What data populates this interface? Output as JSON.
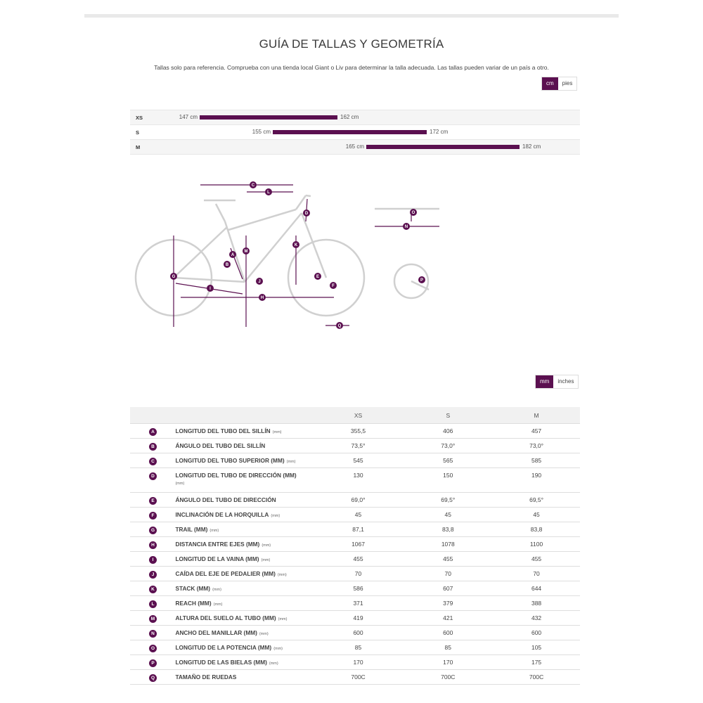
{
  "header": {
    "title": "GUÍA DE TALLAS Y GEOMETRÍA",
    "subtitle": "Tallas solo para referencia. Comprueba con una tienda local Giant o Liv para determinar la talla adecuada. Las tallas pueden variar de un país a otro."
  },
  "size_units": {
    "option_1": "cm",
    "option_2": "pies",
    "selected": "cm"
  },
  "rider_sizes": [
    {
      "size": "XS",
      "min": "147 cm",
      "max": "162 cm",
      "min_value": 147,
      "max_value": 162
    },
    {
      "size": "S",
      "min": "155 cm",
      "max": "172 cm",
      "min_value": 155,
      "max_value": 172
    },
    {
      "size": "M",
      "min": "165 cm",
      "max": "182 cm",
      "min_value": 165,
      "max_value": 182
    }
  ],
  "diagram_labels": {
    "A": "A",
    "B": "B",
    "C": "C",
    "D": "D",
    "E": "E",
    "F": "F",
    "G": "G",
    "H": "H",
    "I": "I",
    "J": "J",
    "K": "K",
    "L": "L",
    "M": "M",
    "N": "N",
    "O": "O",
    "P": "P",
    "Q": "Q"
  },
  "geo_units": {
    "option_1": "mm",
    "option_2": "inches",
    "selected": "mm"
  },
  "geometry": {
    "columns": [
      "XS",
      "S",
      "M"
    ],
    "rows": [
      {
        "letter": "A",
        "name": "LONGITUD DEL TUBO DEL SILLÍN",
        "unit": "(mm)",
        "values": [
          "355,5",
          "406",
          "457"
        ]
      },
      {
        "letter": "B",
        "name": "ÁNGULO DEL TUBO DEL SILLÍN",
        "unit": "",
        "values": [
          "73,5°",
          "73,0°",
          "73,0°"
        ]
      },
      {
        "letter": "C",
        "name": "LONGITUD DEL TUBO SUPERIOR (MM)",
        "unit": "(mm)",
        "values": [
          "545",
          "565",
          "585"
        ]
      },
      {
        "letter": "D",
        "name": "LONGITUD DEL TUBO DE DIRECCIÓN (MM)",
        "unit_below": "(mm)",
        "values": [
          "130",
          "150",
          "190"
        ]
      },
      {
        "letter": "E",
        "name": "ÁNGULO DEL TUBO DE DIRECCIÓN",
        "unit": "",
        "values": [
          "69,0°",
          "69,5°",
          "69,5°"
        ]
      },
      {
        "letter": "F",
        "name": "INCLINACIÓN DE LA HORQUILLA",
        "unit": "(mm)",
        "values": [
          "45",
          "45",
          "45"
        ]
      },
      {
        "letter": "G",
        "name": "TRAIL (MM)",
        "unit": "(mm)",
        "values": [
          "87,1",
          "83,8",
          "83,8"
        ]
      },
      {
        "letter": "H",
        "name": "DISTANCIA ENTRE EJES (MM)",
        "unit": "(mm)",
        "values": [
          "1067",
          "1078",
          "1100"
        ]
      },
      {
        "letter": "I",
        "name": "LONGITUD DE LA VAINA (MM)",
        "unit": "(mm)",
        "values": [
          "455",
          "455",
          "455"
        ]
      },
      {
        "letter": "J",
        "name": "CAÍDA DEL EJE DE PEDALIER (MM)",
        "unit": "(mm)",
        "values": [
          "70",
          "70",
          "70"
        ]
      },
      {
        "letter": "K",
        "name": "STACK (MM)",
        "unit": "(mm)",
        "values": [
          "586",
          "607",
          "644"
        ]
      },
      {
        "letter": "L",
        "name": "REACH (MM)",
        "unit": "(mm)",
        "values": [
          "371",
          "379",
          "388"
        ]
      },
      {
        "letter": "M",
        "name": "ALTURA DEL SUELO AL TUBO (MM)",
        "unit": "(mm)",
        "values": [
          "419",
          "421",
          "432"
        ]
      },
      {
        "letter": "N",
        "name": "ANCHO DEL MANILLAR (MM)",
        "unit": "(mm)",
        "values": [
          "600",
          "600",
          "600"
        ]
      },
      {
        "letter": "O",
        "name": "LONGITUD DE LA POTENCIA (MM)",
        "unit": "(mm)",
        "values": [
          "85",
          "85",
          "105"
        ]
      },
      {
        "letter": "P",
        "name": "LONGITUD DE LAS BIELAS (MM)",
        "unit": "(mm)",
        "values": [
          "170",
          "170",
          "175"
        ]
      },
      {
        "letter": "Q",
        "name": "TAMAÑO DE RUEDAS",
        "unit": "",
        "values": [
          "700C",
          "700C",
          "700C"
        ]
      }
    ]
  },
  "colors": {
    "accent": "#5b1050",
    "diagram_line": "#d0d0d0",
    "row_shade": "#f5f5f5"
  },
  "icons": {
    "geometry_diagram": "bike-geometry-icon"
  }
}
